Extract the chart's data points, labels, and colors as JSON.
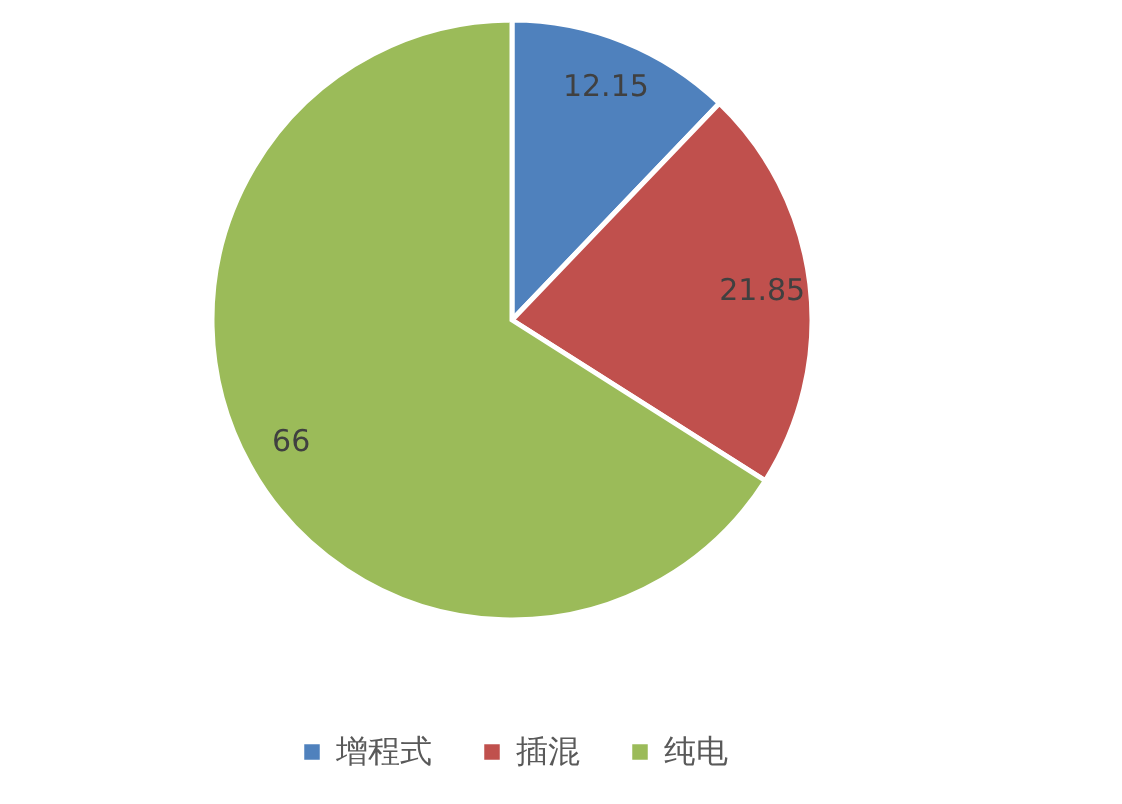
{
  "chart_data": {
    "type": "pie",
    "categories": [
      "增程式",
      "插混",
      "纯电"
    ],
    "values": [
      12.15,
      21.85,
      66
    ],
    "colors": [
      "#4f81bd",
      "#c0504d",
      "#9bbb59"
    ],
    "data_labels": true,
    "legend": "bottom"
  }
}
